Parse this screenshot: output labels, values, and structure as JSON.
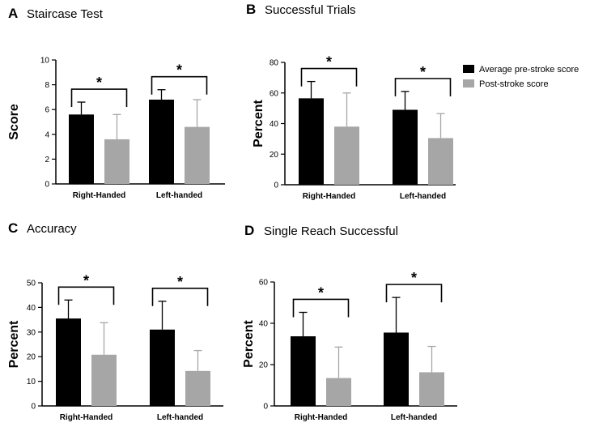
{
  "legend": [
    {
      "label": "Average pre-stroke score",
      "color": "#000000"
    },
    {
      "label": "Post-stroke score",
      "color": "#a6a6a6"
    }
  ],
  "chart_data": [
    {
      "type": "bar",
      "letter": "A",
      "title": "Staircase Test",
      "ylabel": "Score",
      "ylim": [
        0,
        10
      ],
      "yticks": [
        0,
        2,
        4,
        6,
        8,
        10
      ],
      "categories": [
        "Right-Handed",
        "Left-handed"
      ],
      "series": [
        {
          "name": "Average pre-stroke score",
          "values": [
            5.6,
            6.8
          ],
          "errors": [
            1.0,
            0.8
          ]
        },
        {
          "name": "Post-stroke score",
          "values": [
            3.6,
            4.6
          ],
          "errors": [
            2.0,
            2.2
          ]
        }
      ],
      "significance": [
        "*",
        "*"
      ]
    },
    {
      "type": "bar",
      "letter": "B",
      "title": "Successful Trials",
      "ylabel": "Percent",
      "ylim": [
        0,
        80
      ],
      "yticks": [
        0,
        20,
        40,
        60,
        80
      ],
      "categories": [
        "Right-Handed",
        "Left-handed"
      ],
      "series": [
        {
          "name": "Average pre-stroke score",
          "values": [
            56.5,
            49
          ],
          "errors": [
            11,
            12
          ]
        },
        {
          "name": "Post-stroke score",
          "values": [
            38,
            30.5
          ],
          "errors": [
            22,
            16
          ]
        }
      ],
      "significance": [
        "*",
        "*"
      ]
    },
    {
      "type": "bar",
      "letter": "C",
      "title": "Accuracy",
      "ylabel": "Percent",
      "ylim": [
        0,
        50
      ],
      "yticks": [
        0,
        10,
        20,
        30,
        40,
        50
      ],
      "categories": [
        "Right-Handed",
        "Left-handed"
      ],
      "series": [
        {
          "name": "Average pre-stroke score",
          "values": [
            35.5,
            31
          ],
          "errors": [
            7.5,
            11.5
          ]
        },
        {
          "name": "Post-stroke score",
          "values": [
            20.8,
            14.2
          ],
          "errors": [
            13,
            8.3
          ]
        }
      ],
      "significance": [
        "*",
        "*"
      ]
    },
    {
      "type": "bar",
      "letter": "D",
      "title": "Single Reach Successful",
      "ylabel": "Percent",
      "ylim": [
        0,
        60
      ],
      "yticks": [
        0,
        20,
        40,
        60
      ],
      "categories": [
        "Right-Handed",
        "Left-handed"
      ],
      "series": [
        {
          "name": "Average pre-stroke score",
          "values": [
            33.7,
            35.5
          ],
          "errors": [
            11.6,
            17
          ]
        },
        {
          "name": "Post-stroke score",
          "values": [
            13.5,
            16.3
          ],
          "errors": [
            15,
            12.5
          ]
        }
      ],
      "significance": [
        "*",
        "*"
      ]
    }
  ]
}
